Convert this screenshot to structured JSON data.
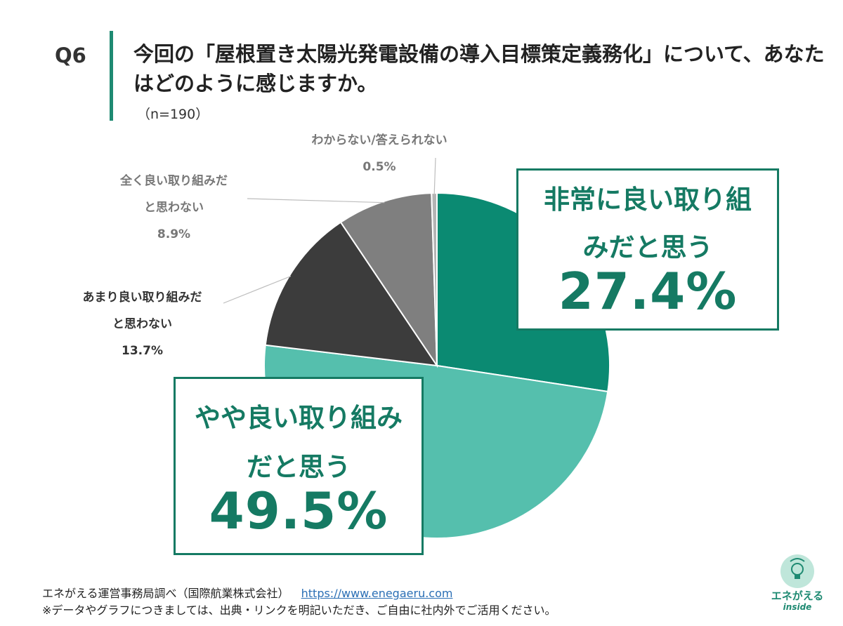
{
  "question": {
    "number": "Q6",
    "title": "今回の「屋根置き太陽光発電設備の導入目標策定義務化」について、あなたはどのように感じますか。",
    "sample": "（n=190）"
  },
  "chart_data": {
    "type": "pie",
    "categories": [
      "非常に良い取り組みだと思う",
      "やや良い取り組みだと思う",
      "あまり良い取り組みだと思わない",
      "全く良い取り組みだと思わない",
      "わからない/答えられない"
    ],
    "values": [
      27.4,
      49.5,
      13.7,
      8.9,
      0.5
    ],
    "value_labels": [
      "27.4%",
      "49.5%",
      "13.7%",
      "8.9%",
      "0.5%"
    ],
    "colors": [
      "#0b8a72",
      "#55bfad",
      "#3c3c3c",
      "#7f7f7f",
      "#b4b4b4"
    ],
    "start": "12 o'clock, clockwise",
    "legend": "none (direct labels)"
  },
  "labels": {
    "very_good_line1": "非常に良い取り組",
    "very_good_line2": "みだと思う",
    "very_good_pct": "27.4%",
    "good_line1": "やや良い取り組み",
    "good_line2": "だと思う",
    "good_pct": "49.5%",
    "not_good_line1": "あまり良い取り組みだ",
    "not_good_line2": "と思わない",
    "not_good_pct": "13.7%",
    "bad_line1": "全く良い取り組みだ",
    "bad_line2": "と思わない",
    "bad_pct": "8.9%",
    "dunno_line1": "わからない/答えられない",
    "dunno_pct": "0.5%"
  },
  "footer": {
    "source": "エネがえる運営事務局調べ（国際航業株式会社）",
    "url": "https://www.enegaeru.com",
    "note": "※データやグラフにつきましては、出典・リンクを明記いただき、ご自由に社内外でご活用ください。"
  },
  "logo": {
    "name": "エネがえる",
    "sub": "inside"
  }
}
